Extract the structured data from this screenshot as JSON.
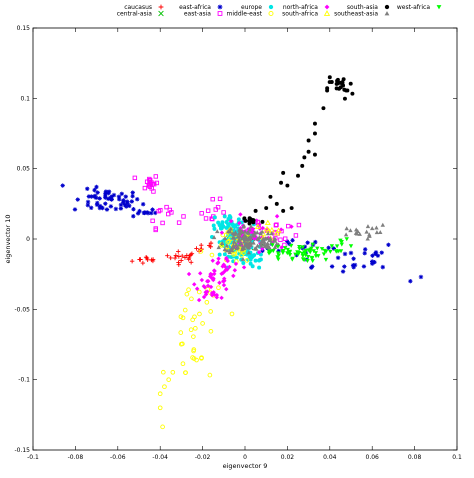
{
  "chart_data": {
    "type": "scatter",
    "xlabel": "eigenvector 9",
    "ylabel": "eigenvector 10",
    "xlim": [
      -0.1,
      0.1
    ],
    "ylim": [
      -0.15,
      0.15
    ],
    "xticks": [
      -0.1,
      -0.08,
      -0.06,
      -0.04,
      -0.02,
      0,
      0.02,
      0.04,
      0.06,
      0.08,
      0.1
    ],
    "xtick_labels": [
      "-0.1",
      "-0.08",
      "-0.06",
      "-0.04",
      "-0.02",
      "0",
      "0.02",
      "0.04",
      "0.06",
      "0.08",
      "0.1"
    ],
    "yticks": [
      -0.15,
      -0.1,
      -0.05,
      0,
      0.05,
      0.1,
      0.15
    ],
    "ytick_labels": [
      "-0.15",
      "-0.1",
      "-0.05",
      "0",
      "0.05",
      "0.1",
      "0.15"
    ],
    "grid": false,
    "legend_position": "top",
    "series": [
      {
        "name": "caucasus",
        "marker": "plus",
        "color": "#ff0000",
        "clusters": [
          {
            "cx": -0.045,
            "cy": -0.015,
            "sx": 0.004,
            "sy": 0.0015,
            "n": 10
          },
          {
            "cx": -0.03,
            "cy": -0.013,
            "sx": 0.004,
            "sy": 0.002,
            "n": 18
          },
          {
            "cx": -0.018,
            "cy": -0.006,
            "sx": 0.003,
            "sy": 0.002,
            "n": 8
          }
        ]
      },
      {
        "name": "central-asia",
        "marker": "x",
        "color": "#00c000",
        "clusters": [
          {
            "cx": -0.003,
            "cy": -0.004,
            "sx": 0.004,
            "sy": 0.003,
            "n": 10
          },
          {
            "cx": 0.005,
            "cy": 0.003,
            "sx": 0.004,
            "sy": 0.003,
            "n": 8
          }
        ]
      },
      {
        "name": "east-africa",
        "marker": "asterisk",
        "color": "#0000cc",
        "clusters": [
          {
            "cx": -0.065,
            "cy": 0.027,
            "sx": 0.008,
            "sy": 0.004,
            "n": 55
          },
          {
            "cx": -0.048,
            "cy": 0.019,
            "sx": 0.003,
            "sy": 0.002,
            "n": 12
          },
          {
            "cx": 0.045,
            "cy": -0.013,
            "sx": 0.015,
            "sy": 0.006,
            "n": 28
          },
          {
            "cx": 0.03,
            "cy": -0.005,
            "sx": 0.01,
            "sy": 0.004,
            "n": 12
          }
        ],
        "points": [
          [
            -0.086,
            0.038
          ],
          [
            0.083,
            -0.027
          ],
          [
            0.078,
            -0.03
          ],
          [
            0.065,
            -0.02
          ],
          [
            0.06,
            -0.016
          ]
        ]
      },
      {
        "name": "east-asia",
        "marker": "square",
        "color": "#ff00ff",
        "clusters": [
          {
            "cx": -0.045,
            "cy": 0.04,
            "sx": 0.002,
            "sy": 0.003,
            "n": 18
          },
          {
            "cx": -0.038,
            "cy": 0.018,
            "sx": 0.004,
            "sy": 0.005,
            "n": 12
          },
          {
            "cx": -0.015,
            "cy": 0.017,
            "sx": 0.004,
            "sy": 0.005,
            "n": 12
          },
          {
            "cx": 0.015,
            "cy": 0.005,
            "sx": 0.005,
            "sy": 0.006,
            "n": 18
          }
        ]
      },
      {
        "name": "europe",
        "marker": "circle",
        "color": "#00e5e5",
        "clusters": [
          {
            "cx": -0.004,
            "cy": 0.0,
            "sx": 0.004,
            "sy": 0.006,
            "n": 110
          },
          {
            "cx": -0.01,
            "cy": 0.012,
            "sx": 0.003,
            "sy": 0.004,
            "n": 20
          },
          {
            "cx": 0.003,
            "cy": -0.012,
            "sx": 0.004,
            "sy": 0.005,
            "n": 30
          }
        ]
      },
      {
        "name": "middle-east",
        "marker": "circle-open",
        "color": "#ffff00",
        "clusters": [
          {
            "cx": -0.005,
            "cy": -0.006,
            "sx": 0.004,
            "sy": 0.006,
            "n": 45
          },
          {
            "cx": -0.023,
            "cy": -0.07,
            "sx": 0.007,
            "sy": 0.025,
            "n": 35
          }
        ],
        "points": [
          [
            -0.04,
            -0.11
          ],
          [
            -0.04,
            -0.12
          ],
          [
            -0.038,
            -0.105
          ],
          [
            -0.036,
            -0.1
          ],
          [
            -0.028,
            -0.095
          ],
          [
            -0.024,
            -0.085
          ],
          [
            -0.02,
            -0.06
          ],
          [
            -0.018,
            -0.045
          ],
          [
            -0.015,
            -0.04
          ]
        ]
      },
      {
        "name": "north-africa",
        "marker": "diamond",
        "color": "#ff00ff",
        "clusters": [
          {
            "cx": -0.015,
            "cy": -0.031,
            "sx": 0.004,
            "sy": 0.006,
            "n": 40
          },
          {
            "cx": -0.01,
            "cy": -0.02,
            "sx": 0.004,
            "sy": 0.004,
            "n": 20
          },
          {
            "cx": 0.003,
            "cy": 0.004,
            "sx": 0.006,
            "sy": 0.006,
            "n": 55
          }
        ]
      },
      {
        "name": "south-africa",
        "marker": "triangle-open",
        "color": "#ffff00",
        "clusters": [
          {
            "cx": 0.01,
            "cy": 0.005,
            "sx": 0.004,
            "sy": 0.004,
            "n": 10
          }
        ]
      },
      {
        "name": "south-asia",
        "marker": "circle",
        "color": "#000000",
        "clusters": [
          {
            "cx": 0.045,
            "cy": 0.107,
            "sx": 0.003,
            "sy": 0.004,
            "n": 22
          },
          {
            "cx": 0.003,
            "cy": 0.013,
            "sx": 0.003,
            "sy": 0.002,
            "n": 14
          }
        ],
        "points": [
          [
            0.04,
            0.115
          ],
          [
            0.037,
            0.093
          ],
          [
            0.033,
            0.082
          ],
          [
            0.03,
            0.07
          ],
          [
            0.033,
            0.075
          ],
          [
            0.03,
            0.062
          ],
          [
            0.033,
            0.06
          ],
          [
            0.028,
            0.058
          ],
          [
            0.027,
            0.052
          ],
          [
            0.025,
            0.045
          ],
          [
            0.018,
            0.047
          ],
          [
            0.02,
            0.038
          ],
          [
            0.017,
            0.04
          ],
          [
            0.015,
            0.025
          ],
          [
            0.012,
            0.03
          ],
          [
            0.01,
            0.022
          ],
          [
            0.005,
            0.02
          ],
          [
            0.018,
            0.02
          ],
          [
            0.022,
            0.022
          ]
        ]
      },
      {
        "name": "southeast-asia",
        "marker": "triangle",
        "color": "#7f7f7f",
        "clusters": [
          {
            "cx": 0.0,
            "cy": 0.0,
            "sx": 0.005,
            "sy": 0.005,
            "n": 110
          },
          {
            "cx": 0.01,
            "cy": -0.003,
            "sx": 0.004,
            "sy": 0.003,
            "n": 25
          },
          {
            "cx": 0.052,
            "cy": 0.004,
            "sx": 0.005,
            "sy": 0.002,
            "n": 15
          }
        ],
        "points": [
          [
            0.065,
            0.01
          ],
          [
            0.062,
            0.008
          ],
          [
            0.058,
            0.009
          ]
        ]
      },
      {
        "name": "west-africa",
        "marker": "triangle-down",
        "color": "#00ff00",
        "clusters": [
          {
            "cx": 0.023,
            "cy": -0.01,
            "sx": 0.006,
            "sy": 0.003,
            "n": 55
          },
          {
            "cx": 0.04,
            "cy": -0.008,
            "sx": 0.004,
            "sy": 0.003,
            "n": 15
          }
        ],
        "points": [
          [
            0.045,
            -0.001
          ],
          [
            0.048,
            0.0
          ],
          [
            0.05,
            -0.005
          ]
        ]
      }
    ]
  }
}
